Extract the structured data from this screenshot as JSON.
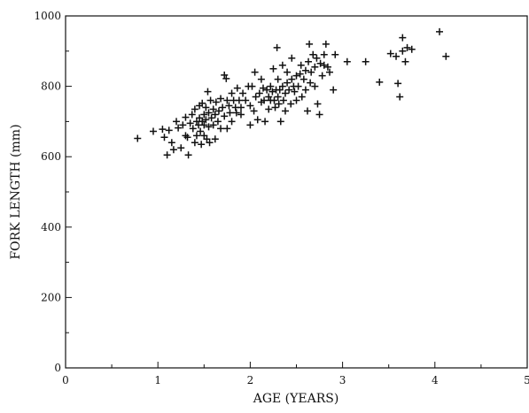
{
  "chart_data": {
    "type": "scatter",
    "title": "",
    "xlabel": "AGE (YEARS)",
    "ylabel": "FORK LENGTH (mm)",
    "xlim": [
      0,
      5
    ],
    "ylim": [
      0,
      1000
    ],
    "x_ticks": [
      "0",
      "1",
      "2",
      "3",
      "4",
      "5"
    ],
    "y_ticks": [
      "0",
      "200",
      "400",
      "600",
      "800",
      "1000"
    ],
    "grid": false,
    "marker": "plus",
    "series": [
      {
        "points": [
          [
            0.78,
            652
          ],
          [
            0.95,
            672
          ],
          [
            1.05,
            678
          ],
          [
            1.07,
            655
          ],
          [
            1.1,
            605
          ],
          [
            1.12,
            675
          ],
          [
            1.15,
            640
          ],
          [
            1.17,
            620
          ],
          [
            1.2,
            700
          ],
          [
            1.22,
            682
          ],
          [
            1.25,
            625
          ],
          [
            1.27,
            690
          ],
          [
            1.3,
            712
          ],
          [
            1.3,
            660
          ],
          [
            1.32,
            655
          ],
          [
            1.33,
            605
          ],
          [
            1.35,
            695
          ],
          [
            1.37,
            720
          ],
          [
            1.38,
            680
          ],
          [
            1.4,
            640
          ],
          [
            1.4,
            735
          ],
          [
            1.42,
            700
          ],
          [
            1.42,
            660
          ],
          [
            1.44,
            690
          ],
          [
            1.45,
            745
          ],
          [
            1.45,
            710
          ],
          [
            1.46,
            672
          ],
          [
            1.47,
            635
          ],
          [
            1.48,
            752
          ],
          [
            1.48,
            700
          ],
          [
            1.5,
            720
          ],
          [
            1.5,
            690
          ],
          [
            1.5,
            660
          ],
          [
            1.52,
            740
          ],
          [
            1.52,
            705
          ],
          [
            1.53,
            650
          ],
          [
            1.54,
            785
          ],
          [
            1.55,
            725
          ],
          [
            1.55,
            685
          ],
          [
            1.56,
            640
          ],
          [
            1.57,
            760
          ],
          [
            1.58,
            710
          ],
          [
            1.6,
            735
          ],
          [
            1.6,
            690
          ],
          [
            1.62,
            720
          ],
          [
            1.62,
            650
          ],
          [
            1.63,
            755
          ],
          [
            1.65,
            700
          ],
          [
            1.66,
            730
          ],
          [
            1.68,
            765
          ],
          [
            1.68,
            680
          ],
          [
            1.7,
            740
          ],
          [
            1.72,
            715
          ],
          [
            1.72,
            832
          ],
          [
            1.74,
            822
          ],
          [
            1.75,
            760
          ],
          [
            1.75,
            680
          ],
          [
            1.77,
            745
          ],
          [
            1.78,
            725
          ],
          [
            1.8,
            700
          ],
          [
            1.8,
            780
          ],
          [
            1.82,
            760
          ],
          [
            1.84,
            740
          ],
          [
            1.85,
            725
          ],
          [
            1.86,
            795
          ],
          [
            1.88,
            760
          ],
          [
            1.9,
            740
          ],
          [
            1.9,
            720
          ],
          [
            1.92,
            780
          ],
          [
            1.95,
            760
          ],
          [
            1.98,
            800
          ],
          [
            2.0,
            745
          ],
          [
            2.0,
            690
          ],
          [
            2.02,
            800
          ],
          [
            2.04,
            730
          ],
          [
            2.05,
            840
          ],
          [
            2.06,
            770
          ],
          [
            2.08,
            705
          ],
          [
            2.1,
            780
          ],
          [
            2.12,
            820
          ],
          [
            2.12,
            755
          ],
          [
            2.14,
            795
          ],
          [
            2.15,
            760
          ],
          [
            2.16,
            700
          ],
          [
            2.18,
            790
          ],
          [
            2.2,
            770
          ],
          [
            2.2,
            735
          ],
          [
            2.22,
            800
          ],
          [
            2.22,
            760
          ],
          [
            2.24,
            785
          ],
          [
            2.25,
            850
          ],
          [
            2.26,
            760
          ],
          [
            2.27,
            740
          ],
          [
            2.28,
            790
          ],
          [
            2.29,
            910
          ],
          [
            2.3,
            770
          ],
          [
            2.3,
            820
          ],
          [
            2.31,
            750
          ],
          [
            2.32,
            790
          ],
          [
            2.33,
            700
          ],
          [
            2.35,
            800
          ],
          [
            2.35,
            860
          ],
          [
            2.36,
            760
          ],
          [
            2.38,
            730
          ],
          [
            2.38,
            780
          ],
          [
            2.4,
            810
          ],
          [
            2.4,
            840
          ],
          [
            2.42,
            790
          ],
          [
            2.44,
            750
          ],
          [
            2.45,
            880
          ],
          [
            2.45,
            820
          ],
          [
            2.47,
            800
          ],
          [
            2.48,
            785
          ],
          [
            2.5,
            830
          ],
          [
            2.5,
            760
          ],
          [
            2.52,
            800
          ],
          [
            2.54,
            835
          ],
          [
            2.55,
            860
          ],
          [
            2.56,
            770
          ],
          [
            2.58,
            820
          ],
          [
            2.6,
            845
          ],
          [
            2.6,
            790
          ],
          [
            2.62,
            730
          ],
          [
            2.63,
            870
          ],
          [
            2.64,
            920
          ],
          [
            2.65,
            810
          ],
          [
            2.66,
            840
          ],
          [
            2.68,
            890
          ],
          [
            2.7,
            855
          ],
          [
            2.7,
            800
          ],
          [
            2.72,
            880
          ],
          [
            2.73,
            750
          ],
          [
            2.75,
            720
          ],
          [
            2.76,
            865
          ],
          [
            2.78,
            830
          ],
          [
            2.8,
            860
          ],
          [
            2.8,
            890
          ],
          [
            2.82,
            920
          ],
          [
            2.84,
            855
          ],
          [
            2.86,
            840
          ],
          [
            2.9,
            790
          ],
          [
            2.92,
            890
          ],
          [
            3.05,
            870
          ],
          [
            3.25,
            870
          ],
          [
            3.4,
            812
          ],
          [
            3.52,
            893
          ],
          [
            3.58,
            885
          ],
          [
            3.6,
            808
          ],
          [
            3.62,
            770
          ],
          [
            3.65,
            938
          ],
          [
            3.65,
            900
          ],
          [
            3.68,
            870
          ],
          [
            3.7,
            910
          ],
          [
            3.75,
            905
          ],
          [
            4.05,
            955
          ],
          [
            4.12,
            885
          ]
        ]
      }
    ]
  }
}
